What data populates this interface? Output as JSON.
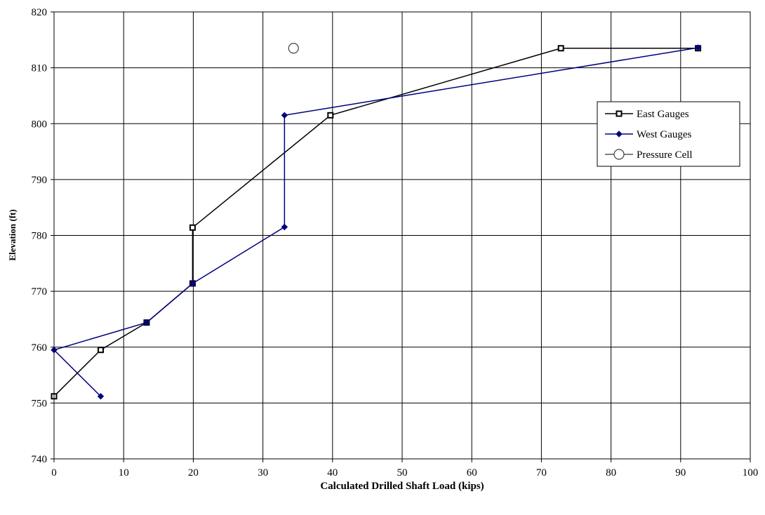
{
  "chart_data": {
    "type": "line",
    "title": "",
    "xlabel": "Calculated Drilled Shaft Load (kips)",
    "ylabel": "Elevation (ft)",
    "xlim": [
      0,
      100
    ],
    "ylim": [
      740,
      820
    ],
    "xticks": [
      0,
      10,
      20,
      30,
      40,
      50,
      60,
      70,
      80,
      90,
      100
    ],
    "yticks": [
      740,
      750,
      760,
      770,
      780,
      790,
      800,
      810,
      820
    ],
    "grid": true,
    "legend_position": "right",
    "series": [
      {
        "name": "East Gauges",
        "color": "#000000",
        "marker": "square",
        "points": [
          [
            0,
            751.2
          ],
          [
            6.7,
            759.5
          ],
          [
            13.3,
            764.4
          ],
          [
            19.9,
            771.4
          ],
          [
            19.9,
            781.4
          ],
          [
            39.7,
            801.5
          ],
          [
            72.8,
            813.5
          ],
          [
            92.5,
            813.5
          ]
        ]
      },
      {
        "name": "West Gauges",
        "color": "#000080",
        "marker": "diamond",
        "points": [
          [
            6.7,
            751.2
          ],
          [
            0,
            759.5
          ],
          [
            13.3,
            764.4
          ],
          [
            19.9,
            771.4
          ],
          [
            33.1,
            781.5
          ],
          [
            33.1,
            801.5
          ],
          [
            92.5,
            813.6
          ]
        ]
      },
      {
        "name": "Pressure Cell",
        "color": "#404040",
        "marker": "circle",
        "line": false,
        "points": [
          [
            34.4,
            813.5
          ]
        ]
      }
    ]
  }
}
